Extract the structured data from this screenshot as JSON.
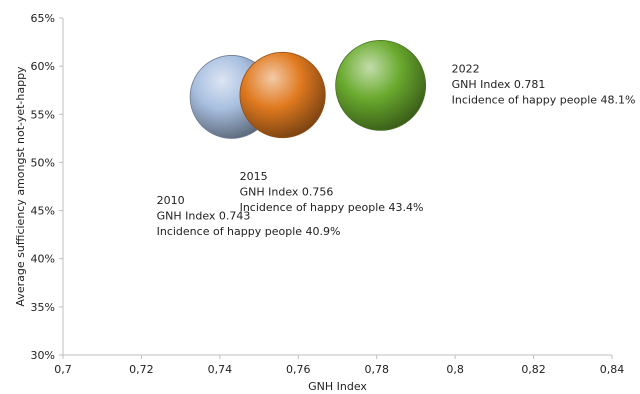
{
  "chart_data": {
    "type": "scatter",
    "xlabel": "GNH Index",
    "ylabel": "Average sufficiency amongst not-yet-happy",
    "xlim": [
      0.7,
      0.84
    ],
    "ylim": [
      30,
      65
    ],
    "x_ticks": [
      "0,7",
      "0,72",
      "0,74",
      "0,76",
      "0,78",
      "0,8",
      "0,82",
      "0,84"
    ],
    "y_ticks": [
      "30%",
      "35%",
      "40%",
      "45%",
      "50%",
      "55%",
      "60%",
      "65%"
    ],
    "grid": false,
    "legend": "none",
    "points": [
      {
        "x": 0.743,
        "y": 56.8,
        "bubble_size": 40.9,
        "color": "#a8bfe0",
        "label_lines": [
          "2010",
          "GNH Index 0.743",
          "Incidence of happy people 40.9%"
        ]
      },
      {
        "x": 0.756,
        "y": 57.0,
        "bubble_size": 43.4,
        "color": "#e07a20",
        "label_lines": [
          "2015",
          "GNH Index 0.756",
          "Incidence of happy people 43.4%"
        ]
      },
      {
        "x": 0.781,
        "y": 58.0,
        "bubble_size": 48.1,
        "color": "#6aaa2e",
        "label_lines": [
          "2022",
          "GNH Index 0.781",
          "Incidence of happy people 48.1%"
        ]
      }
    ]
  }
}
